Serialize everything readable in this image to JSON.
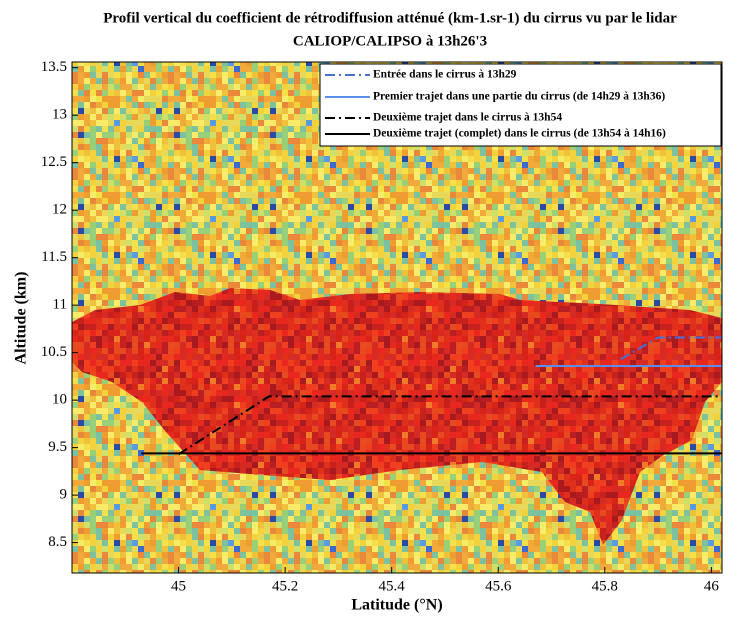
{
  "chart_data": {
    "type": "line",
    "title": [
      "Profil vertical du coefficient de rétrodiffusion atténué (km-1.sr-1) du cirrus vu par le lidar",
      "CALIOP/CALIPSO à 13h26'3"
    ],
    "x_label": "Latitude (°N)",
    "y_label": "Altitude (km)",
    "xlim": [
      44.8,
      46.02
    ],
    "ylim": [
      8.18,
      13.56
    ],
    "xticks": [
      45,
      45.2,
      45.4,
      45.6,
      45.8,
      46
    ],
    "yticks": [
      8.5,
      9,
      9.5,
      10,
      10.5,
      11,
      11.5,
      12,
      12.5,
      13,
      13.5
    ],
    "legend": "upper right",
    "series": [
      {
        "name": "Entrée dans le cirrus à 13h29",
        "color": "#4a6fd8",
        "linestyle": "dashdot",
        "x": [
          45.83,
          45.9,
          46.02
        ],
        "values": [
          10.43,
          10.66,
          10.66
        ]
      },
      {
        "name": "Premier trajet dans une partie du cirrus (de 14h29 à 13h36)",
        "color": "#5b8ee8",
        "linestyle": "solid",
        "x": [
          45.67,
          46.02
        ],
        "values": [
          10.36,
          10.36
        ]
      },
      {
        "name": "Deuxième trajet dans le cirrus à 13h54",
        "color": "#000000",
        "linestyle": "dashdot",
        "x": [
          45.0,
          45.17,
          46.02
        ],
        "values": [
          9.43,
          10.04,
          10.04
        ]
      },
      {
        "name": "Deuxième trajet (complet) dans le cirrus (de 13h54 à 14h16)",
        "color": "#000000",
        "linestyle": "solid",
        "x": [
          44.93,
          46.02
        ],
        "values": [
          9.44,
          9.44
        ]
      }
    ]
  }
}
